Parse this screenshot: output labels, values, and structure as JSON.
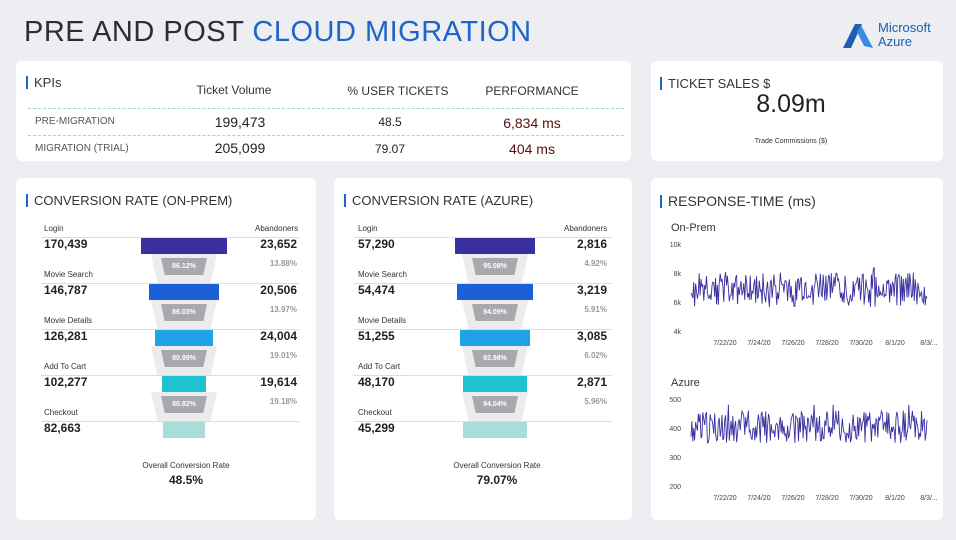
{
  "header": {
    "title_part1": "PRE AND POST ",
    "title_part2": "CLOUD MIGRATION",
    "logo_line1": "Microsoft",
    "logo_line2": "Azure"
  },
  "kpis": {
    "heading": "KPIs",
    "columns": [
      "Ticket Volume",
      "% USER TICKETS",
      "PERFORMANCE"
    ],
    "rows": [
      {
        "label": "PRE-MIGRATION",
        "ticket_volume": "199,473",
        "user_tickets": "48.5",
        "performance": "6,834 ms"
      },
      {
        "label": "MIGRATION (TRIAL)",
        "ticket_volume": "205,099",
        "user_tickets": "79.07",
        "performance": "404 ms"
      }
    ]
  },
  "ticket_sales": {
    "heading": "TICKET SALES $",
    "value": "8.09m",
    "caption": "Trade Commissions ($)"
  },
  "onprem": {
    "heading": "CONVERSION RATE (ON-PREM)",
    "col_left": "Login",
    "col_right": "Abandoners",
    "stages": [
      {
        "label": "Login",
        "value": "170,439",
        "abandoners": "23,652",
        "abandon_pct": "13.88%",
        "rate": "86.12%",
        "count": 170439
      },
      {
        "label": "Movie Search",
        "value": "146,787",
        "abandoners": "20,506",
        "abandon_pct": "13.97%",
        "rate": "86.03%",
        "count": 146787
      },
      {
        "label": "Movie Details",
        "value": "126,281",
        "abandoners": "24,004",
        "abandon_pct": "19.01%",
        "rate": "80.99%",
        "count": 126281
      },
      {
        "label": "Add To Cart",
        "value": "102,277",
        "abandoners": "19,614",
        "abandon_pct": "19.18%",
        "rate": "80.82%",
        "count": 102277
      },
      {
        "label": "Checkout",
        "value": "82,663",
        "count": 82663
      }
    ],
    "overall_label": "Overall Conversion Rate",
    "overall_value": "48.5%"
  },
  "azure": {
    "heading": "CONVERSION RATE (AZURE)",
    "col_left": "Login",
    "col_right": "Abandoners",
    "stages": [
      {
        "label": "Login",
        "value": "57,290",
        "abandoners": "2,816",
        "abandon_pct": "4.92%",
        "rate": "95.08%",
        "count": 57290
      },
      {
        "label": "Movie Search",
        "value": "54,474",
        "abandoners": "3,219",
        "abandon_pct": "5.91%",
        "rate": "94.09%",
        "count": 54474
      },
      {
        "label": "Movie Details",
        "value": "51,255",
        "abandoners": "3,085",
        "abandon_pct": "6.02%",
        "rate": "93.98%",
        "count": 51255
      },
      {
        "label": "Add To Cart",
        "value": "48,170",
        "abandoners": "2,871",
        "abandon_pct": "5.96%",
        "rate": "94.04%",
        "count": 48170
      },
      {
        "label": "Checkout",
        "value": "45,299",
        "count": 45299
      }
    ],
    "overall_label": "Overall Conversion Rate",
    "overall_value": "79.07%"
  },
  "funnel_colors": [
    "#3a2fa0",
    "#1f5fd6",
    "#1ea3e8",
    "#1ec3cf",
    "#a8ddd8"
  ],
  "response": {
    "heading": "RESPONSE-TIME (ms)",
    "x_ticks": [
      "7/22/20",
      "7/24/20",
      "7/26/20",
      "7/28/20",
      "7/30/20",
      "8/1/20",
      "8/3/..."
    ],
    "line_color": "#3a2fa0"
  },
  "chart_data": [
    {
      "type": "line",
      "title": "On-Prem",
      "ylabel": "ms",
      "yticks": [
        "10k",
        "8k",
        "6k",
        "4k"
      ],
      "ylim": [
        4000,
        10000
      ],
      "x_range": [
        "7/21/20",
        "8/3/20"
      ],
      "series": [
        {
          "name": "On-Prem",
          "mean": 6834,
          "min": 5200,
          "max": 8400
        }
      ]
    },
    {
      "type": "line",
      "title": "Azure",
      "ylabel": "ms",
      "yticks": [
        "500",
        "400",
        "300",
        "200"
      ],
      "ylim": [
        200,
        500
      ],
      "x_range": [
        "7/21/20",
        "8/3/20"
      ],
      "series": [
        {
          "name": "Azure",
          "mean": 404,
          "min": 330,
          "max": 480
        }
      ]
    }
  ]
}
